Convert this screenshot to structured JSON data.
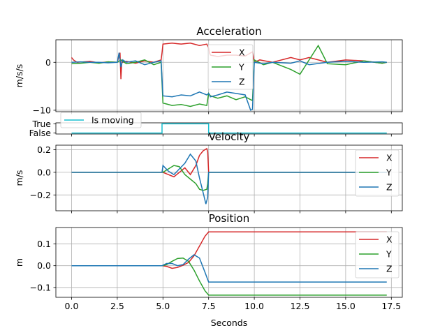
{
  "figure": {
    "xlabel": "Seconds"
  },
  "colors": {
    "X": "#d62728",
    "Y": "#2ca02c",
    "Z": "#1f77b4",
    "moving": "#17becf"
  },
  "chart_data": [
    {
      "type": "line",
      "title": "Acceleration",
      "ylabel": "m/s/s",
      "xlim": [
        -0.86,
        18.1
      ],
      "ylim": [
        -10.3,
        4.7
      ],
      "yticks": [
        0,
        -10
      ],
      "ytick_labels": [
        "0",
        "−10"
      ],
      "xticks": [
        0,
        2.5,
        5,
        7.5,
        10,
        12.5,
        15,
        17.5
      ],
      "show_xtick_labels": false,
      "grid": true,
      "legend": "center",
      "series": [
        {
          "name": "X",
          "color": "#d62728",
          "x": [
            0,
            0.1,
            0.3,
            1.0,
            1.5,
            2.0,
            2.5,
            2.65,
            2.7,
            2.75,
            2.8,
            3.0,
            3.5,
            4.0,
            4.5,
            4.9,
            4.95,
            5.0,
            5.5,
            6.0,
            6.5,
            7.0,
            7.4,
            7.5,
            7.55,
            7.6,
            8.0,
            8.5,
            9.0,
            9.5,
            9.9,
            10.0,
            10.3,
            11.0,
            12.0,
            12.5,
            13.0,
            14.0,
            15.0,
            16.0,
            17.0,
            17.25
          ],
          "y": [
            1.0,
            0.5,
            0.0,
            0.2,
            -0.1,
            0.1,
            0.0,
            2.0,
            -3.5,
            0.5,
            0.0,
            0.2,
            -0.2,
            0.3,
            0.0,
            0.5,
            2.0,
            3.8,
            4.0,
            3.8,
            4.0,
            3.5,
            3.8,
            3.0,
            2.0,
            1.5,
            1.2,
            1.5,
            1.5,
            1.3,
            2.2,
            0.0,
            0.5,
            0.0,
            1.0,
            0.5,
            1.0,
            0.0,
            0.5,
            0.3,
            -0.2,
            0.0
          ]
        },
        {
          "name": "Y",
          "color": "#2ca02c",
          "x": [
            0,
            0.5,
            1.0,
            1.5,
            2.0,
            2.5,
            2.7,
            3.0,
            3.5,
            4.0,
            4.5,
            4.9,
            5.0,
            5.5,
            6.0,
            6.5,
            7.0,
            7.4,
            7.5,
            7.6,
            8.0,
            8.5,
            9.0,
            9.5,
            9.9,
            10.0,
            10.5,
            11.0,
            12.0,
            12.5,
            13.0,
            13.5,
            14.0,
            15.0,
            16.0,
            17.0,
            17.25
          ],
          "y": [
            -0.3,
            -0.2,
            0.0,
            -0.2,
            0.1,
            0.0,
            0.5,
            -0.3,
            0.0,
            0.5,
            -0.5,
            0.0,
            -8.5,
            -9.0,
            -8.8,
            -9.2,
            -8.7,
            -9.0,
            -6.5,
            -7.0,
            -7.5,
            -7.0,
            -7.8,
            -7.2,
            -8.0,
            0.5,
            -0.5,
            0.0,
            -1.5,
            -2.5,
            0.5,
            3.5,
            -0.3,
            -0.5,
            0.3,
            -0.2,
            0.0
          ]
        },
        {
          "name": "Z",
          "color": "#1f77b4",
          "x": [
            0,
            0.5,
            1.0,
            1.5,
            2.0,
            2.5,
            2.6,
            2.7,
            2.8,
            3.0,
            3.5,
            4.0,
            4.5,
            4.9,
            5.0,
            5.5,
            6.0,
            6.5,
            7.0,
            7.4,
            7.5,
            7.6,
            8.0,
            8.5,
            9.0,
            9.5,
            9.8,
            9.9,
            10.0,
            10.5,
            11.0,
            12.0,
            12.5,
            13.0,
            14.0,
            15.0,
            16.0,
            17.0,
            17.25
          ],
          "y": [
            0.0,
            0.1,
            0.0,
            0.0,
            -0.1,
            0.0,
            2.0,
            -1.0,
            0.5,
            0.0,
            0.3,
            -0.5,
            0.0,
            0.3,
            -7.0,
            -7.2,
            -6.8,
            -7.0,
            -6.2,
            -6.8,
            -6.5,
            -7.2,
            -6.8,
            -6.2,
            -6.5,
            -6.8,
            -10.0,
            -9.8,
            0.0,
            -0.3,
            0.0,
            -0.2,
            0.3,
            -0.5,
            0.0,
            0.2,
            0.0,
            0.1,
            0.0
          ]
        }
      ]
    },
    {
      "type": "line",
      "title": "",
      "ylabel": "",
      "xlim": [
        -0.86,
        18.1
      ],
      "ylim": [
        -0.1,
        1.1
      ],
      "yticks": [
        1,
        0
      ],
      "ytick_labels": [
        "True",
        "False"
      ],
      "xticks": [
        0,
        2.5,
        5,
        7.5,
        10,
        12.5,
        15,
        17.5
      ],
      "show_xtick_labels": false,
      "grid": false,
      "legend": "upper-left",
      "series": [
        {
          "name": "Is moving",
          "color": "#17becf",
          "x": [
            0,
            4.95,
            4.95,
            7.5,
            7.5,
            17.25
          ],
          "y": [
            0,
            0,
            1,
            1,
            0,
            0
          ]
        }
      ]
    },
    {
      "type": "line",
      "title": "Velocity",
      "ylabel": "m/s",
      "xlim": [
        -0.86,
        18.1
      ],
      "ylim": [
        -0.34,
        0.24
      ],
      "yticks": [
        0.2,
        0.0,
        -0.2
      ],
      "ytick_labels": [
        "0.2",
        "0.0",
        "−0.2"
      ],
      "xticks": [
        0,
        2.5,
        5,
        7.5,
        10,
        12.5,
        15,
        17.5
      ],
      "show_xtick_labels": false,
      "grid": true,
      "legend": "upper-right",
      "series": [
        {
          "name": "X",
          "color": "#d62728",
          "x": [
            0,
            4.95,
            5.0,
            5.3,
            5.6,
            5.9,
            6.2,
            6.5,
            6.8,
            7.0,
            7.2,
            7.4,
            7.45,
            7.5,
            17.25
          ],
          "y": [
            0,
            0,
            0.0,
            -0.02,
            -0.04,
            0.0,
            0.04,
            -0.02,
            0.06,
            0.15,
            0.19,
            0.21,
            0.18,
            0.0,
            0.0
          ]
        },
        {
          "name": "Y",
          "color": "#2ca02c",
          "x": [
            0,
            4.95,
            5.0,
            5.3,
            5.6,
            5.9,
            6.2,
            6.5,
            6.8,
            7.0,
            7.2,
            7.4,
            7.45,
            7.5,
            17.25
          ],
          "y": [
            0,
            0,
            0.0,
            0.03,
            0.06,
            0.05,
            -0.02,
            -0.06,
            -0.1,
            -0.15,
            -0.16,
            -0.15,
            -0.1,
            0.0,
            0.0
          ]
        },
        {
          "name": "Z",
          "color": "#1f77b4",
          "x": [
            0,
            4.95,
            5.0,
            5.3,
            5.6,
            5.9,
            6.2,
            6.5,
            6.8,
            7.0,
            7.2,
            7.35,
            7.45,
            7.5,
            17.25
          ],
          "y": [
            0,
            0,
            0.06,
            0.01,
            -0.02,
            0.03,
            0.08,
            0.16,
            0.1,
            -0.05,
            -0.18,
            -0.28,
            -0.22,
            0.0,
            0.0
          ]
        }
      ]
    },
    {
      "type": "line",
      "title": "Position",
      "ylabel": "m",
      "xlim": [
        -0.86,
        18.1
      ],
      "ylim": [
        -0.145,
        0.175
      ],
      "yticks": [
        0.1,
        0.0,
        -0.1
      ],
      "ytick_labels": [
        "0.1",
        "0.0",
        "−0.1"
      ],
      "xticks": [
        0,
        2.5,
        5,
        7.5,
        10,
        12.5,
        15,
        17.5
      ],
      "xtick_labels": [
        "0.0",
        "2.5",
        "5.0",
        "7.5",
        "10.0",
        "12.5",
        "15.0",
        "17.5"
      ],
      "show_xtick_labels": true,
      "grid": true,
      "legend": "upper-right",
      "series": [
        {
          "name": "X",
          "color": "#d62728",
          "x": [
            0,
            4.95,
            5.2,
            5.5,
            5.8,
            6.1,
            6.4,
            6.7,
            7.0,
            7.3,
            7.5,
            17.25
          ],
          "y": [
            0,
            0,
            -0.003,
            -0.012,
            -0.008,
            0.002,
            0.015,
            0.045,
            0.09,
            0.135,
            0.155,
            0.155
          ]
        },
        {
          "name": "Y",
          "color": "#2ca02c",
          "x": [
            0,
            4.95,
            5.2,
            5.5,
            5.8,
            6.1,
            6.4,
            6.7,
            7.0,
            7.3,
            7.5,
            17.25
          ],
          "y": [
            0,
            0,
            0.005,
            0.02,
            0.033,
            0.035,
            0.02,
            -0.02,
            -0.07,
            -0.115,
            -0.135,
            -0.135
          ]
        },
        {
          "name": "Z",
          "color": "#1f77b4",
          "x": [
            0,
            4.95,
            5.2,
            5.5,
            5.8,
            6.1,
            6.4,
            6.7,
            7.0,
            7.3,
            7.5,
            17.25
          ],
          "y": [
            0,
            0,
            0.01,
            0.01,
            0.0,
            0.005,
            0.03,
            0.05,
            0.035,
            -0.03,
            -0.075,
            -0.075
          ]
        }
      ]
    }
  ]
}
